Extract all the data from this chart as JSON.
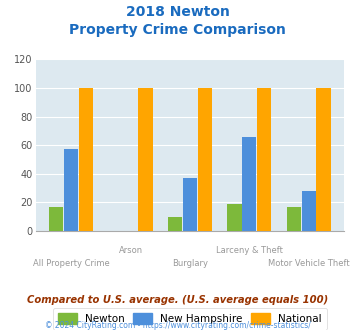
{
  "title_line1": "2018 Newton",
  "title_line2": "Property Crime Comparison",
  "categories": [
    "All Property Crime",
    "Arson",
    "Burglary",
    "Larceny & Theft",
    "Motor Vehicle Theft"
  ],
  "newton": [
    17,
    0,
    10,
    19,
    17
  ],
  "new_hampshire": [
    57,
    0,
    37,
    66,
    28
  ],
  "national": [
    100,
    100,
    100,
    100,
    100
  ],
  "color_newton": "#7db93b",
  "color_nh": "#4d8fdb",
  "color_national": "#ffa500",
  "ylim": [
    0,
    120
  ],
  "yticks": [
    0,
    20,
    40,
    60,
    80,
    100,
    120
  ],
  "bg_color": "#dde9f0",
  "fig_bg": "#ffffff",
  "title_color": "#1a6bbf",
  "xlabel_color": "#999999",
  "note_text": "Compared to U.S. average. (U.S. average equals 100)",
  "footer_text": "© 2024 CityRating.com - https://www.cityrating.com/crime-statistics/",
  "note_color": "#993300",
  "footer_color": "#4d8fdb"
}
